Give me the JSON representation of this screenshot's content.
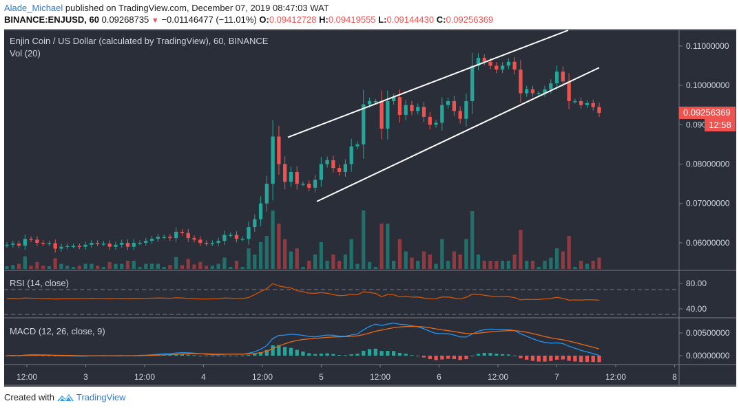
{
  "header": {
    "author": "Alade_Michael",
    "published_text": " published on TradingView.com, December 07, 2019 08:47:03 WAT",
    "symbol": "BINANCE:ENJUSD, 60",
    "last_price": "0.09268735",
    "change": "−0.01146477 (−11.01%)",
    "o_label": "O:",
    "o_value": "0.09412728",
    "h_label": "H:",
    "h_value": "0.09419555",
    "l_label": "L:",
    "l_value": "0.09144430",
    "c_label": "C:",
    "c_value": "0.09256369"
  },
  "chart": {
    "title": "Enjin Coin / US Dollar (calculated by TradingView), 60, BINANCE",
    "vol_label": "Vol (20)",
    "rsi_label": "RSI (14, close)",
    "macd_label": "MACD (12, 26, close, 9)",
    "current_price_tag": "0.09256369",
    "countdown_tag": "12:58",
    "colors": {
      "bg": "#2a2e39",
      "up": "#26a69a",
      "down": "#ef5350",
      "vol_up": "#22706b",
      "vol_down": "#8e3a3f",
      "rsi": "#d35400",
      "macd": "#2196f3",
      "signal": "#e86a17",
      "channel": "#ffffff"
    }
  },
  "footer": {
    "created_with": "Created with",
    "brand": "TradingView"
  },
  "chart_data": {
    "type": "candlestick",
    "title": "Enjin Coin / US Dollar (calculated by TradingView), 60, BINANCE",
    "price_axis": {
      "ticks": [
        "0.11000000",
        "0.10000000",
        "0.09000000",
        "0.08000000",
        "0.07000000",
        "0.06000000"
      ],
      "range": [
        0.053,
        0.114
      ]
    },
    "rsi_axis": {
      "ticks": [
        "80.00",
        "40.00"
      ],
      "bands": [
        70,
        30
      ]
    },
    "macd_axis": {
      "ticks": [
        "0.00500000",
        "0.00000000"
      ]
    },
    "time_axis": [
      "12:00",
      "3",
      "12:00",
      "4",
      "12:00",
      "5",
      "12:00",
      "6",
      "12:00",
      "7",
      "12:00",
      "8"
    ],
    "channel_upper": [
      [
        0.0868,
        418
      ],
      [
        0.114,
        825
      ]
    ],
    "channel_lower": [
      [
        0.0705,
        460
      ],
      [
        0.1045,
        870
      ]
    ],
    "close_series_approx": [
      0.0595,
      0.0598,
      0.0593,
      0.061,
      0.0608,
      0.06,
      0.0598,
      0.0599,
      0.0585,
      0.059,
      0.0592,
      0.0592,
      0.059,
      0.0595,
      0.06,
      0.0598,
      0.0598,
      0.059,
      0.0595,
      0.06,
      0.059,
      0.06,
      0.06,
      0.0605,
      0.061,
      0.0615,
      0.0615,
      0.0612,
      0.0628,
      0.0625,
      0.0612,
      0.0608,
      0.06,
      0.0598,
      0.06,
      0.0605,
      0.062,
      0.062,
      0.061,
      0.061,
      0.064,
      0.066,
      0.07,
      0.075,
      0.087,
      0.08,
      0.0755,
      0.078,
      0.075,
      0.075,
      0.074,
      0.076,
      0.08,
      0.081,
      0.079,
      0.078,
      0.08,
      0.0845,
      0.085,
      0.0952,
      0.096,
      0.096,
      0.089,
      0.096,
      0.097,
      0.0925,
      0.095,
      0.0935,
      0.0945,
      0.092,
      0.09,
      0.0905,
      0.095,
      0.096,
      0.0935,
      0.0915,
      0.096,
      0.105,
      0.107,
      0.106,
      0.105,
      0.104,
      0.105,
      0.106,
      0.104,
      0.098,
      0.099,
      0.098,
      0.098,
      0.099,
      0.1005,
      0.1035,
      0.101,
      0.096,
      0.096,
      0.095,
      0.0955,
      0.0945,
      0.093
    ]
  }
}
